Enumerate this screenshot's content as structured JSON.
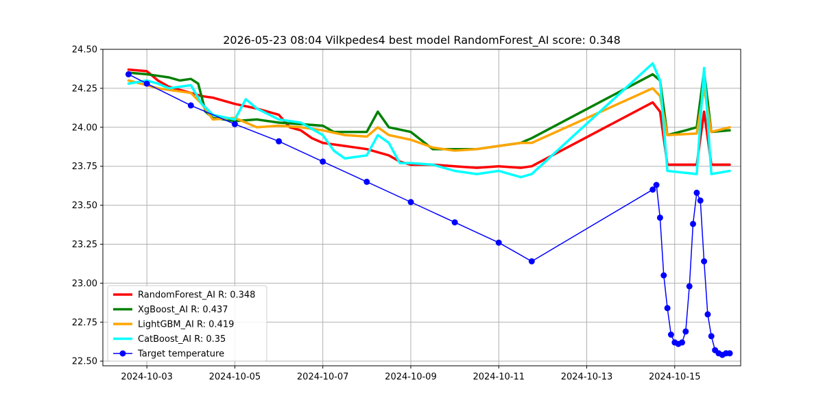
{
  "chart_data": {
    "type": "line",
    "title": "2026-05-23 08:04 Vilkpedes4 best model RandomForest_AI score: 0.348",
    "xlabel": "",
    "ylabel": "",
    "xlim": [
      "2024-10-02 00:00",
      "2024-10-16 12:00"
    ],
    "ylim": [
      22.47,
      24.5
    ],
    "x_ticks": [
      "2024-10-03",
      "2024-10-05",
      "2024-10-07",
      "2024-10-09",
      "2024-10-11",
      "2024-10-13",
      "2024-10-15"
    ],
    "y_ticks": [
      "22.50",
      "22.75",
      "23.00",
      "23.25",
      "23.50",
      "23.75",
      "24.00",
      "24.25",
      "24.50"
    ],
    "grid": true,
    "legend_position": "lower-left",
    "series": [
      {
        "name": "RandomForest_AI R: 0.348",
        "color": "#ff0000",
        "points": [
          [
            "2024-10-02 14:00",
            24.37
          ],
          [
            "2024-10-03 00:00",
            24.36
          ],
          [
            "2024-10-03 06:00",
            24.3
          ],
          [
            "2024-10-03 12:00",
            24.26
          ],
          [
            "2024-10-03 18:00",
            24.24
          ],
          [
            "2024-10-04 00:00",
            24.22
          ],
          [
            "2024-10-04 06:00",
            24.2
          ],
          [
            "2024-10-04 12:00",
            24.19
          ],
          [
            "2024-10-05 00:00",
            24.15
          ],
          [
            "2024-10-05 12:00",
            24.12
          ],
          [
            "2024-10-06 00:00",
            24.08
          ],
          [
            "2024-10-06 06:00",
            24.0
          ],
          [
            "2024-10-06 12:00",
            23.98
          ],
          [
            "2024-10-06 18:00",
            23.93
          ],
          [
            "2024-10-07 00:00",
            23.9
          ],
          [
            "2024-10-07 12:00",
            23.88
          ],
          [
            "2024-10-08 00:00",
            23.86
          ],
          [
            "2024-10-08 12:00",
            23.82
          ],
          [
            "2024-10-08 18:00",
            23.78
          ],
          [
            "2024-10-09 00:00",
            23.76
          ],
          [
            "2024-10-09 12:00",
            23.76
          ],
          [
            "2024-10-10 00:00",
            23.75
          ],
          [
            "2024-10-10 12:00",
            23.74
          ],
          [
            "2024-10-11 00:00",
            23.75
          ],
          [
            "2024-10-11 12:00",
            23.74
          ],
          [
            "2024-10-11 18:00",
            23.75
          ],
          [
            "2024-10-14 12:00",
            24.16
          ],
          [
            "2024-10-14 16:00",
            24.1
          ],
          [
            "2024-10-14 20:00",
            23.76
          ],
          [
            "2024-10-15 12:00",
            23.76
          ],
          [
            "2024-10-15 16:00",
            24.1
          ],
          [
            "2024-10-15 20:00",
            23.76
          ],
          [
            "2024-10-16 06:00",
            23.76
          ]
        ]
      },
      {
        "name": "XgBoost_AI R: 0.437",
        "color": "#008000",
        "points": [
          [
            "2024-10-02 14:00",
            24.35
          ],
          [
            "2024-10-03 00:00",
            24.34
          ],
          [
            "2024-10-03 06:00",
            24.33
          ],
          [
            "2024-10-03 12:00",
            24.32
          ],
          [
            "2024-10-03 18:00",
            24.3
          ],
          [
            "2024-10-04 00:00",
            24.31
          ],
          [
            "2024-10-04 04:00",
            24.28
          ],
          [
            "2024-10-04 08:00",
            24.1
          ],
          [
            "2024-10-04 12:00",
            24.06
          ],
          [
            "2024-10-05 00:00",
            24.04
          ],
          [
            "2024-10-05 12:00",
            24.05
          ],
          [
            "2024-10-06 00:00",
            24.03
          ],
          [
            "2024-10-06 12:00",
            24.02
          ],
          [
            "2024-10-07 00:00",
            24.01
          ],
          [
            "2024-10-07 06:00",
            23.97
          ],
          [
            "2024-10-07 18:00",
            23.97
          ],
          [
            "2024-10-08 00:00",
            23.97
          ],
          [
            "2024-10-08 06:00",
            24.1
          ],
          [
            "2024-10-08 12:00",
            24.0
          ],
          [
            "2024-10-09 00:00",
            23.97
          ],
          [
            "2024-10-09 12:00",
            23.86
          ],
          [
            "2024-10-10 00:00",
            23.86
          ],
          [
            "2024-10-10 12:00",
            23.86
          ],
          [
            "2024-10-11 00:00",
            23.88
          ],
          [
            "2024-10-11 12:00",
            23.9
          ],
          [
            "2024-10-11 18:00",
            23.93
          ],
          [
            "2024-10-14 12:00",
            24.34
          ],
          [
            "2024-10-14 16:00",
            24.3
          ],
          [
            "2024-10-14 20:00",
            23.95
          ],
          [
            "2024-10-15 06:00",
            23.98
          ],
          [
            "2024-10-15 12:00",
            24.0
          ],
          [
            "2024-10-15 16:00",
            24.36
          ],
          [
            "2024-10-15 20:00",
            23.97
          ],
          [
            "2024-10-16 06:00",
            23.98
          ]
        ]
      },
      {
        "name": "LightGBM_AI R: 0.419",
        "color": "#ffa500",
        "points": [
          [
            "2024-10-02 14:00",
            24.3
          ],
          [
            "2024-10-03 00:00",
            24.27
          ],
          [
            "2024-10-03 06:00",
            24.25
          ],
          [
            "2024-10-03 12:00",
            24.24
          ],
          [
            "2024-10-04 00:00",
            24.22
          ],
          [
            "2024-10-04 06:00",
            24.15
          ],
          [
            "2024-10-04 12:00",
            24.05
          ],
          [
            "2024-10-05 00:00",
            24.06
          ],
          [
            "2024-10-05 12:00",
            24.0
          ],
          [
            "2024-10-06 00:00",
            24.01
          ],
          [
            "2024-10-06 12:00",
            24.0
          ],
          [
            "2024-10-07 00:00",
            23.98
          ],
          [
            "2024-10-07 12:00",
            23.95
          ],
          [
            "2024-10-08 00:00",
            23.94
          ],
          [
            "2024-10-08 06:00",
            24.0
          ],
          [
            "2024-10-08 12:00",
            23.95
          ],
          [
            "2024-10-09 00:00",
            23.92
          ],
          [
            "2024-10-09 12:00",
            23.87
          ],
          [
            "2024-10-10 00:00",
            23.85
          ],
          [
            "2024-10-10 12:00",
            23.86
          ],
          [
            "2024-10-11 00:00",
            23.88
          ],
          [
            "2024-10-11 12:00",
            23.9
          ],
          [
            "2024-10-11 18:00",
            23.9
          ],
          [
            "2024-10-14 12:00",
            24.25
          ],
          [
            "2024-10-14 16:00",
            24.2
          ],
          [
            "2024-10-14 20:00",
            23.95
          ],
          [
            "2024-10-15 12:00",
            23.96
          ],
          [
            "2024-10-15 16:00",
            24.25
          ],
          [
            "2024-10-15 20:00",
            23.97
          ],
          [
            "2024-10-16 06:00",
            24.0
          ]
        ]
      },
      {
        "name": "CatBoost_AI R: 0.35",
        "color": "#00ffff",
        "points": [
          [
            "2024-10-02 14:00",
            24.28
          ],
          [
            "2024-10-03 00:00",
            24.3
          ],
          [
            "2024-10-03 06:00",
            24.28
          ],
          [
            "2024-10-03 12:00",
            24.25
          ],
          [
            "2024-10-04 00:00",
            24.27
          ],
          [
            "2024-10-04 06:00",
            24.15
          ],
          [
            "2024-10-04 12:00",
            24.08
          ],
          [
            "2024-10-05 00:00",
            24.05
          ],
          [
            "2024-10-05 06:00",
            24.18
          ],
          [
            "2024-10-05 12:00",
            24.12
          ],
          [
            "2024-10-06 00:00",
            24.05
          ],
          [
            "2024-10-06 12:00",
            24.03
          ],
          [
            "2024-10-07 00:00",
            23.95
          ],
          [
            "2024-10-07 06:00",
            23.85
          ],
          [
            "2024-10-07 12:00",
            23.8
          ],
          [
            "2024-10-08 00:00",
            23.82
          ],
          [
            "2024-10-08 06:00",
            23.95
          ],
          [
            "2024-10-08 12:00",
            23.9
          ],
          [
            "2024-10-08 18:00",
            23.77
          ],
          [
            "2024-10-09 00:00",
            23.77
          ],
          [
            "2024-10-09 12:00",
            23.76
          ],
          [
            "2024-10-10 00:00",
            23.72
          ],
          [
            "2024-10-10 12:00",
            23.7
          ],
          [
            "2024-10-11 00:00",
            23.72
          ],
          [
            "2024-10-11 12:00",
            23.68
          ],
          [
            "2024-10-11 18:00",
            23.7
          ],
          [
            "2024-10-14 12:00",
            24.41
          ],
          [
            "2024-10-14 16:00",
            24.3
          ],
          [
            "2024-10-14 20:00",
            23.72
          ],
          [
            "2024-10-15 12:00",
            23.7
          ],
          [
            "2024-10-15 16:00",
            24.38
          ],
          [
            "2024-10-15 20:00",
            23.7
          ],
          [
            "2024-10-16 06:00",
            23.72
          ]
        ]
      },
      {
        "name": "Target temperature",
        "color": "#0000ff",
        "marker": "circle",
        "points": [
          [
            "2024-10-02 14:00",
            24.34
          ],
          [
            "2024-10-03 00:00",
            24.28
          ],
          [
            "2024-10-04 00:00",
            24.14
          ],
          [
            "2024-10-05 00:00",
            24.02
          ],
          [
            "2024-10-06 00:00",
            23.91
          ],
          [
            "2024-10-07 00:00",
            23.78
          ],
          [
            "2024-10-08 00:00",
            23.65
          ],
          [
            "2024-10-09 00:00",
            23.52
          ],
          [
            "2024-10-10 00:00",
            23.39
          ],
          [
            "2024-10-11 00:00",
            23.26
          ],
          [
            "2024-10-11 18:00",
            23.14
          ],
          [
            "2024-10-14 12:00",
            23.6
          ],
          [
            "2024-10-14 14:00",
            23.63
          ],
          [
            "2024-10-14 16:00",
            23.42
          ],
          [
            "2024-10-14 18:00",
            23.05
          ],
          [
            "2024-10-14 20:00",
            22.84
          ],
          [
            "2024-10-14 22:00",
            22.67
          ],
          [
            "2024-10-15 00:00",
            22.62
          ],
          [
            "2024-10-15 02:00",
            22.61
          ],
          [
            "2024-10-15 04:00",
            22.62
          ],
          [
            "2024-10-15 06:00",
            22.69
          ],
          [
            "2024-10-15 08:00",
            22.98
          ],
          [
            "2024-10-15 10:00",
            23.38
          ],
          [
            "2024-10-15 12:00",
            23.58
          ],
          [
            "2024-10-15 14:00",
            23.53
          ],
          [
            "2024-10-15 16:00",
            23.14
          ],
          [
            "2024-10-15 18:00",
            22.8
          ],
          [
            "2024-10-15 20:00",
            22.66
          ],
          [
            "2024-10-15 22:00",
            22.57
          ],
          [
            "2024-10-16 00:00",
            22.55
          ],
          [
            "2024-10-16 02:00",
            22.54
          ],
          [
            "2024-10-16 04:00",
            22.55
          ],
          [
            "2024-10-16 06:00",
            22.55
          ]
        ]
      }
    ]
  }
}
